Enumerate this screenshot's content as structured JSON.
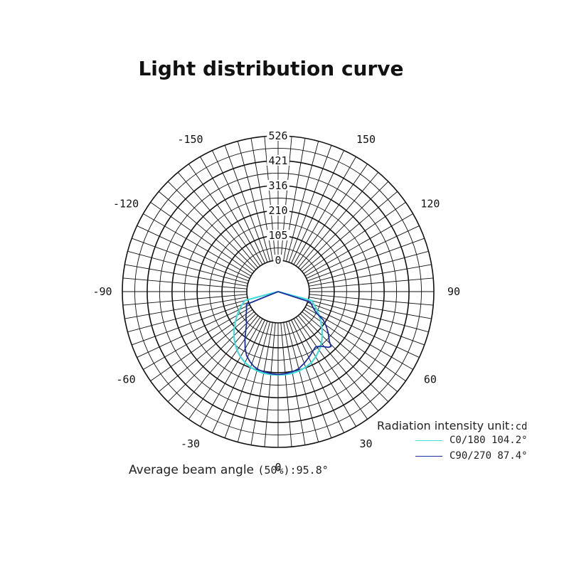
{
  "chart_data": {
    "type": "polar",
    "title": "Light distribution curve",
    "radial_ticks": [
      0,
      105,
      210,
      316,
      421,
      526
    ],
    "radial_max": 526,
    "angle_ticks": [
      {
        "angle": -150,
        "label": "-150"
      },
      {
        "angle": 150,
        "label": "150"
      },
      {
        "angle": -120,
        "label": "-120"
      },
      {
        "angle": 120,
        "label": "120"
      },
      {
        "angle": -90,
        "label": "-90"
      },
      {
        "angle": 90,
        "label": "90"
      },
      {
        "angle": -60,
        "label": "-60"
      },
      {
        "angle": 60,
        "label": "60"
      },
      {
        "angle": -30,
        "label": "-30"
      },
      {
        "angle": 30,
        "label": "30"
      },
      {
        "angle": 0,
        "label": "0"
      }
    ],
    "series": [
      {
        "name": "C0/180",
        "value_label": "104.2°",
        "color": "#44dcdc",
        "points": [
          [
            -75,
            14
          ],
          [
            -70,
            30
          ],
          [
            -65,
            48
          ],
          [
            -60,
            68
          ],
          [
            -55,
            88
          ],
          [
            -50,
            110
          ],
          [
            -45,
            132
          ],
          [
            -40,
            152
          ],
          [
            -35,
            170
          ],
          [
            -30,
            186
          ],
          [
            -25,
            199
          ],
          [
            -20,
            208
          ],
          [
            -15,
            214
          ],
          [
            -10,
            218
          ],
          [
            -5,
            220
          ],
          [
            0,
            220
          ],
          [
            5,
            220
          ],
          [
            10,
            218
          ],
          [
            15,
            214
          ],
          [
            20,
            208
          ],
          [
            25,
            199
          ],
          [
            30,
            186
          ],
          [
            35,
            170
          ],
          [
            40,
            152
          ],
          [
            45,
            132
          ],
          [
            50,
            110
          ],
          [
            55,
            88
          ],
          [
            60,
            68
          ],
          [
            65,
            48
          ],
          [
            70,
            30
          ],
          [
            75,
            14
          ]
        ]
      },
      {
        "name": "C90/270",
        "value_label": "87.4°",
        "color": "#1c2e9c",
        "points": [
          [
            -68,
            12
          ],
          [
            -60,
            22
          ],
          [
            -52,
            40
          ],
          [
            -45,
            56
          ],
          [
            -40,
            80
          ],
          [
            -35,
            112
          ],
          [
            -30,
            146
          ],
          [
            -26,
            170
          ],
          [
            -22,
            186
          ],
          [
            -18,
            200
          ],
          [
            -14,
            208
          ],
          [
            -10,
            212
          ],
          [
            -5,
            216
          ],
          [
            0,
            218
          ],
          [
            5,
            216
          ],
          [
            10,
            212
          ],
          [
            15,
            205
          ],
          [
            20,
            190
          ],
          [
            25,
            175
          ],
          [
            30,
            160
          ],
          [
            34,
            150
          ],
          [
            38,
            160
          ],
          [
            42,
            185
          ],
          [
            44,
            190
          ],
          [
            46,
            168
          ],
          [
            50,
            145
          ],
          [
            54,
            120
          ],
          [
            58,
            92
          ],
          [
            60,
            62
          ],
          [
            61,
            52
          ],
          [
            64,
            36
          ],
          [
            68,
            22
          ],
          [
            72,
            10
          ]
        ]
      }
    ]
  },
  "legend": {
    "title": "Radiation intensity unit",
    "unit": ":cd",
    "items": [
      {
        "label": "C0/180 104.2°"
      },
      {
        "label": "C90/270 87.4°"
      }
    ]
  },
  "beam": {
    "label": "Average beam angle",
    "value": "(50%):95.8°"
  }
}
